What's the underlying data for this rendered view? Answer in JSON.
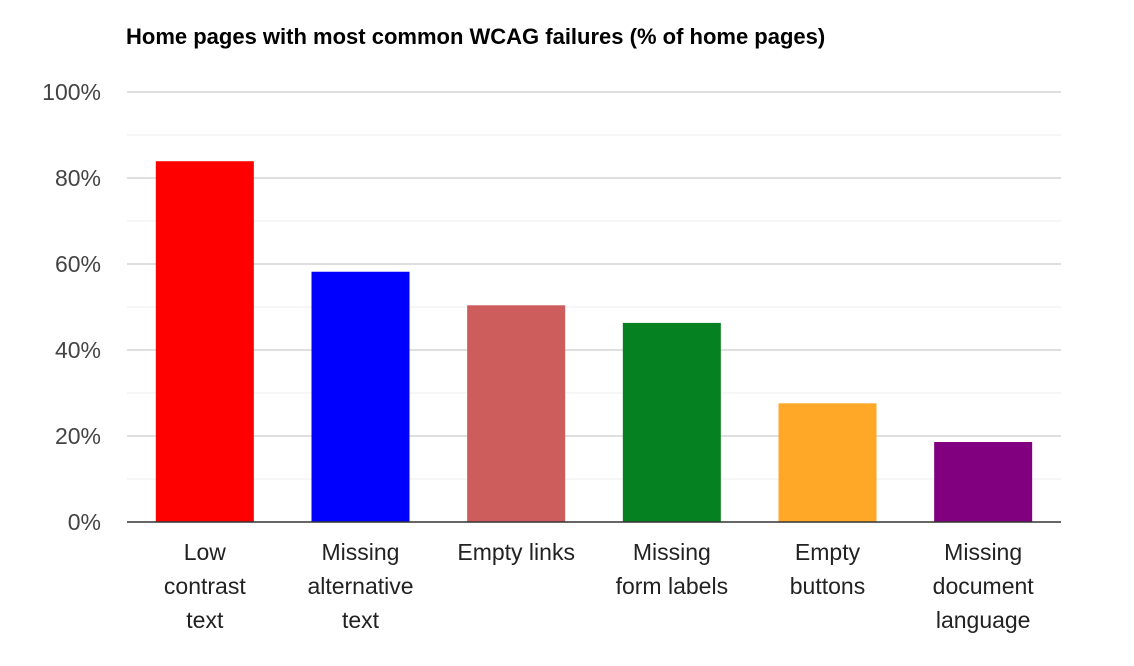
{
  "chart_data": {
    "type": "bar",
    "title": "Home pages with most common WCAG failures (% of home pages)",
    "categories": [
      [
        "Low",
        "contrast",
        "text"
      ],
      [
        "Missing",
        "alternative",
        "text"
      ],
      [
        "Empty links"
      ],
      [
        "Missing",
        "form labels"
      ],
      [
        "Empty",
        "buttons"
      ],
      [
        "Missing",
        "document",
        "language"
      ]
    ],
    "values": [
      83.9,
      58.2,
      50.4,
      46.3,
      27.6,
      18.6
    ],
    "colors": [
      "#ff0000",
      "#0000ff",
      "#cd5c5c",
      "#068121",
      "#ffa726",
      "#800080"
    ],
    "ylim": [
      0,
      100
    ],
    "yticks": [
      0,
      20,
      40,
      60,
      80,
      100
    ],
    "ytick_labels": [
      "0%",
      "20%",
      "40%",
      "60%",
      "80%",
      "100%"
    ],
    "grid": true,
    "minor_grid": true,
    "legend": "none",
    "xlabel": "",
    "ylabel": ""
  }
}
